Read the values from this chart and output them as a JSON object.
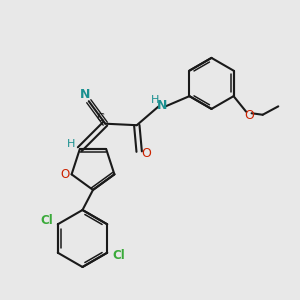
{
  "bg_color": "#e8e8e8",
  "bond_color": "#1a1a1a",
  "N_color": "#1a9090",
  "O_color": "#cc2200",
  "Cl_color": "#3aaa3a",
  "C_color": "#1a1a1a",
  "H_color": "#1a9090",
  "figsize": [
    3.0,
    3.0
  ],
  "dpi": 100,
  "xlim": [
    0,
    10
  ],
  "ylim": [
    0,
    10
  ]
}
